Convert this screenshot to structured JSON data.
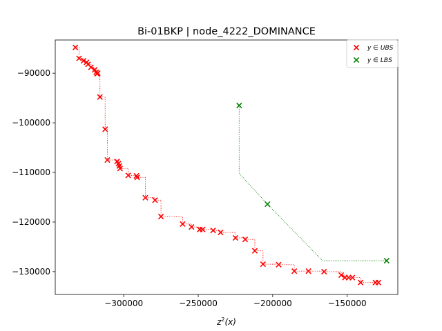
{
  "chart_data": {
    "type": "scatter",
    "title": "Bi-01BKP | node_4222_DOMINANCE",
    "xlabel": "z²(x)",
    "ylabel": "",
    "xlim": [
      -346000,
      -116000
    ],
    "ylim": [
      -134600,
      -83300
    ],
    "xticks": [
      -300000,
      -250000,
      -200000,
      -150000
    ],
    "xtick_labels": [
      "−300000",
      "−250000",
      "−200000",
      "−150000"
    ],
    "yticks": [
      -90000,
      -100000,
      -110000,
      -120000,
      -130000
    ],
    "ytick_labels": [
      "−90000",
      "−100000",
      "−110000",
      "−120000",
      "−130000"
    ],
    "grid": false,
    "legend_position": "top-right",
    "legend": [
      {
        "label": "y ∈ UBS",
        "color": "#ff0000"
      },
      {
        "label": "y ∈ LBS",
        "color": "#008000"
      }
    ],
    "series": [
      {
        "name": "y ∈ UBS",
        "color": "#ff0000",
        "marker": "x",
        "step_line": "dotted",
        "points": [
          [
            -332500,
            -84800
          ],
          [
            -330000,
            -87000
          ],
          [
            -327000,
            -87500
          ],
          [
            -325000,
            -87800
          ],
          [
            -324000,
            -88200
          ],
          [
            -322000,
            -88800
          ],
          [
            -319500,
            -89300
          ],
          [
            -318500,
            -89800
          ],
          [
            -318000,
            -90100
          ],
          [
            -317500,
            -90000
          ],
          [
            -316000,
            -94800
          ],
          [
            -312500,
            -101300
          ],
          [
            -311000,
            -107500
          ],
          [
            -304500,
            -107800
          ],
          [
            -303500,
            -108200
          ],
          [
            -303000,
            -108700
          ],
          [
            -302500,
            -109200
          ],
          [
            -297000,
            -110600
          ],
          [
            -291500,
            -110700
          ],
          [
            -291000,
            -111000
          ],
          [
            -285500,
            -115100
          ],
          [
            -279000,
            -115600
          ],
          [
            -275000,
            -118900
          ],
          [
            -260500,
            -120400
          ],
          [
            -254500,
            -121000
          ],
          [
            -249000,
            -121500
          ],
          [
            -247000,
            -121500
          ],
          [
            -240000,
            -121700
          ],
          [
            -235000,
            -122100
          ],
          [
            -225000,
            -123200
          ],
          [
            -218500,
            -123500
          ],
          [
            -212000,
            -125800
          ],
          [
            -206500,
            -128500
          ],
          [
            -196000,
            -128600
          ],
          [
            -185500,
            -129900
          ],
          [
            -176000,
            -129900
          ],
          [
            -165500,
            -130000
          ],
          [
            -154000,
            -130700
          ],
          [
            -151500,
            -131200
          ],
          [
            -149000,
            -131200
          ],
          [
            -146500,
            -131200
          ],
          [
            -141000,
            -132200
          ],
          [
            -131000,
            -132200
          ],
          [
            -129000,
            -132200
          ]
        ]
      },
      {
        "name": "y ∈ LBS",
        "color": "#008000",
        "marker": "x",
        "connect_line": "dotted",
        "points": [
          [
            -222500,
            -96500
          ],
          [
            -203500,
            -116400
          ],
          [
            -123500,
            -127800
          ]
        ],
        "line_path": [
          [
            -222500,
            -96500
          ],
          [
            -222500,
            -110200
          ],
          [
            -203500,
            -116400
          ],
          [
            -166500,
            -127800
          ],
          [
            -123500,
            -127800
          ]
        ]
      }
    ]
  }
}
